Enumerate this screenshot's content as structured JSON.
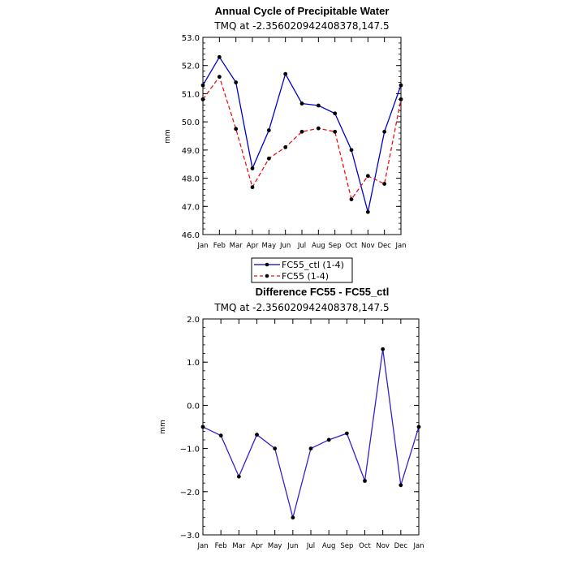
{
  "chart_data": [
    {
      "type": "line",
      "title": "Annual Cycle of Precipitable Water",
      "subtitle": "TMQ at -2.356020942408378,147.5",
      "ylabel": "mm",
      "ylim": [
        46.0,
        53.0
      ],
      "yticks": [
        "46.0",
        "47.0",
        "48.0",
        "49.0",
        "50.0",
        "51.0",
        "52.0",
        "53.0"
      ],
      "categories": [
        "Jan",
        "Feb",
        "Mar",
        "Apr",
        "May",
        "Jun",
        "Jul",
        "Aug",
        "Sep",
        "Oct",
        "Nov",
        "Dec",
        "Jan"
      ],
      "series": [
        {
          "name": "FC55_ctl (1-4)",
          "color": "#0000cc",
          "dash": "solid",
          "values": [
            51.3,
            52.3,
            51.4,
            48.35,
            49.7,
            51.7,
            50.65,
            50.58,
            50.3,
            49.0,
            46.8,
            49.65,
            51.3
          ]
        },
        {
          "name": "FC55 (1-4)",
          "color": "#ee1111",
          "dash": "dashed",
          "values": [
            50.8,
            51.6,
            49.75,
            47.68,
            48.7,
            49.1,
            49.65,
            49.77,
            49.65,
            47.25,
            48.08,
            47.8,
            50.8
          ]
        }
      ],
      "legend": "below"
    },
    {
      "type": "line",
      "title": "Difference FC55 - FC55_ctl",
      "subtitle": "TMQ at -2.356020942408378,147.5",
      "ylabel": "mm",
      "ylim": [
        -3.0,
        2.0
      ],
      "yticks": [
        "−3.0",
        "−2.0",
        "−1.0",
        "0.0",
        "1.0",
        "2.0"
      ],
      "categories": [
        "Jan",
        "Feb",
        "Mar",
        "Apr",
        "May",
        "Jun",
        "Jul",
        "Aug",
        "Sep",
        "Oct",
        "Nov",
        "Dec",
        "Jan"
      ],
      "series": [
        {
          "color": "#3322cc",
          "values": [
            -0.5,
            -0.7,
            -1.65,
            -0.68,
            -1.0,
            -2.6,
            -1.0,
            -0.8,
            -0.65,
            -1.75,
            1.3,
            -1.85,
            -0.5
          ]
        }
      ]
    }
  ]
}
